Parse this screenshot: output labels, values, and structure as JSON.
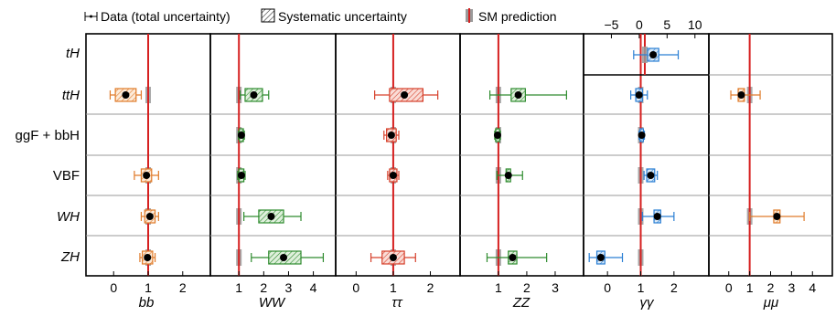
{
  "legend": {
    "data": "Data (total uncertainty)",
    "systematic": "Systematic uncertainty",
    "sm": "SM prediction"
  },
  "colors": {
    "bb": "#e07b2a",
    "WW": "#2e8b2e",
    "tautau": "#d6402b",
    "ZZ": "#2e8b2e",
    "gammagamma": "#2a7fd4",
    "mumu": "#e07b2a",
    "sm_line": "#d62020",
    "sm_band": "#9a9a9a"
  },
  "chart_data": {
    "type": "scatter",
    "rows": [
      "tH",
      "ttH",
      "ggF + bbH",
      "VBF",
      "WH",
      "ZH"
    ],
    "panels": [
      {
        "name": "bb",
        "label": "bb",
        "xlim": [
          -0.8,
          2.8
        ],
        "ticks": [
          0,
          1,
          2
        ],
        "color_key": "bb",
        "points": [
          {
            "row": "ttH",
            "value": 0.35,
            "total": [
              -0.45,
              0.45
            ],
            "syst": [
              -0.3,
              0.3
            ]
          },
          {
            "row": "VBF",
            "value": 0.95,
            "total": [
              -0.35,
              0.35
            ],
            "syst": [
              -0.15,
              0.15
            ]
          },
          {
            "row": "WH",
            "value": 1.05,
            "total": [
              -0.25,
              0.25
            ],
            "syst": [
              -0.15,
              0.15
            ]
          },
          {
            "row": "ZH",
            "value": 0.98,
            "total": [
              -0.22,
              0.22
            ],
            "syst": [
              -0.15,
              0.15
            ]
          }
        ]
      },
      {
        "name": "WW",
        "label": "WW",
        "xlim": [
          -0.15,
          4.9
        ],
        "ticks": [
          1,
          2,
          3,
          4
        ],
        "color_key": "WW",
        "points": [
          {
            "row": "ttH",
            "value": 1.6,
            "total": [
              -0.55,
              0.6
            ],
            "syst": [
              -0.35,
              0.35
            ]
          },
          {
            "row": "ggF + bbH",
            "value": 1.1,
            "total": [
              -0.12,
              0.12
            ],
            "syst": [
              -0.08,
              0.08
            ]
          },
          {
            "row": "VBF",
            "value": 1.1,
            "total": [
              -0.15,
              0.15
            ],
            "syst": [
              -0.1,
              0.1
            ]
          },
          {
            "row": "WH",
            "value": 2.3,
            "total": [
              -1.1,
              1.2
            ],
            "syst": [
              -0.5,
              0.5
            ]
          },
          {
            "row": "ZH",
            "value": 2.8,
            "total": [
              -1.3,
              1.6
            ],
            "syst": [
              -0.6,
              0.7
            ]
          }
        ]
      },
      {
        "name": "tautau",
        "label": "ττ",
        "xlim": [
          -0.55,
          2.8
        ],
        "ticks": [
          0,
          1,
          2
        ],
        "color_key": "tautau",
        "points": [
          {
            "row": "ttH",
            "value": 1.3,
            "total": [
              -0.8,
              0.9
            ],
            "syst": [
              -0.4,
              0.5
            ]
          },
          {
            "row": "ggF + bbH",
            "value": 0.95,
            "total": [
              -0.2,
              0.2
            ],
            "syst": [
              -0.13,
              0.13
            ]
          },
          {
            "row": "VBF",
            "value": 1.0,
            "total": [
              -0.15,
              0.15
            ],
            "syst": [
              -0.1,
              0.1
            ]
          },
          {
            "row": "ZH",
            "value": 1.0,
            "total": [
              -0.6,
              0.6
            ],
            "syst": [
              -0.3,
              0.3
            ]
          }
        ]
      },
      {
        "name": "ZZ",
        "label": "ZZ",
        "xlim": [
          -0.35,
          4.0
        ],
        "ticks": [
          1,
          2,
          3
        ],
        "color_key": "ZZ",
        "points": [
          {
            "row": "ttH",
            "value": 1.7,
            "total": [
              -1.0,
              1.7
            ],
            "syst": [
              -0.25,
              0.25
            ]
          },
          {
            "row": "ggF + bbH",
            "value": 0.97,
            "total": [
              -0.1,
              0.1
            ],
            "syst": [
              -0.07,
              0.07
            ]
          },
          {
            "row": "VBF",
            "value": 1.35,
            "total": [
              -0.4,
              0.5
            ],
            "syst": [
              -0.08,
              0.08
            ]
          },
          {
            "row": "ZH",
            "value": 1.5,
            "total": [
              -0.9,
              1.2
            ],
            "syst": [
              -0.15,
              0.15
            ]
          }
        ]
      },
      {
        "name": "gammagamma",
        "label": "γγ",
        "xlim": [
          -0.72,
          3.05
        ],
        "ticks": [
          0,
          1,
          2
        ],
        "color_key": "gammagamma",
        "points": [
          {
            "row": "ttH",
            "value": 0.95,
            "total": [
              -0.25,
              0.25
            ],
            "syst": [
              -0.1,
              0.1
            ]
          },
          {
            "row": "ggF + bbH",
            "value": 1.03,
            "total": [
              -0.08,
              0.08
            ],
            "syst": [
              -0.05,
              0.05
            ]
          },
          {
            "row": "VBF",
            "value": 1.3,
            "total": [
              -0.2,
              0.2
            ],
            "syst": [
              -0.12,
              0.12
            ]
          },
          {
            "row": "WH",
            "value": 1.5,
            "total": [
              -0.45,
              0.5
            ],
            "syst": [
              -0.1,
              0.1
            ]
          },
          {
            "row": "ZH",
            "value": -0.2,
            "total": [
              -0.35,
              0.65
            ],
            "syst": [
              -0.12,
              0.12
            ]
          }
        ]
      },
      {
        "name": "mumu",
        "label": "μμ",
        "xlim": [
          -0.95,
          4.95
        ],
        "ticks": [
          0,
          1,
          2,
          3,
          4
        ],
        "color_key": "mumu",
        "points": [
          {
            "row": "ttH",
            "value": 0.6,
            "total": [
              -0.5,
              0.9
            ],
            "syst": [
              -0.15,
              0.15
            ]
          },
          {
            "row": "WH",
            "value": 2.3,
            "total": [
              -1.3,
              1.3
            ],
            "syst": [
              -0.15,
              0.15
            ]
          }
        ]
      }
    ],
    "inset": {
      "panel": "gammagamma",
      "row": "tH",
      "xlim": [
        -10,
        12.5
      ],
      "ticks": [
        -5,
        0,
        5,
        10
      ],
      "point": {
        "value": 2.5,
        "total": [
          -3.5,
          4.5
        ],
        "syst": [
          -1.0,
          1.0
        ]
      }
    },
    "sm_prediction": 1
  }
}
